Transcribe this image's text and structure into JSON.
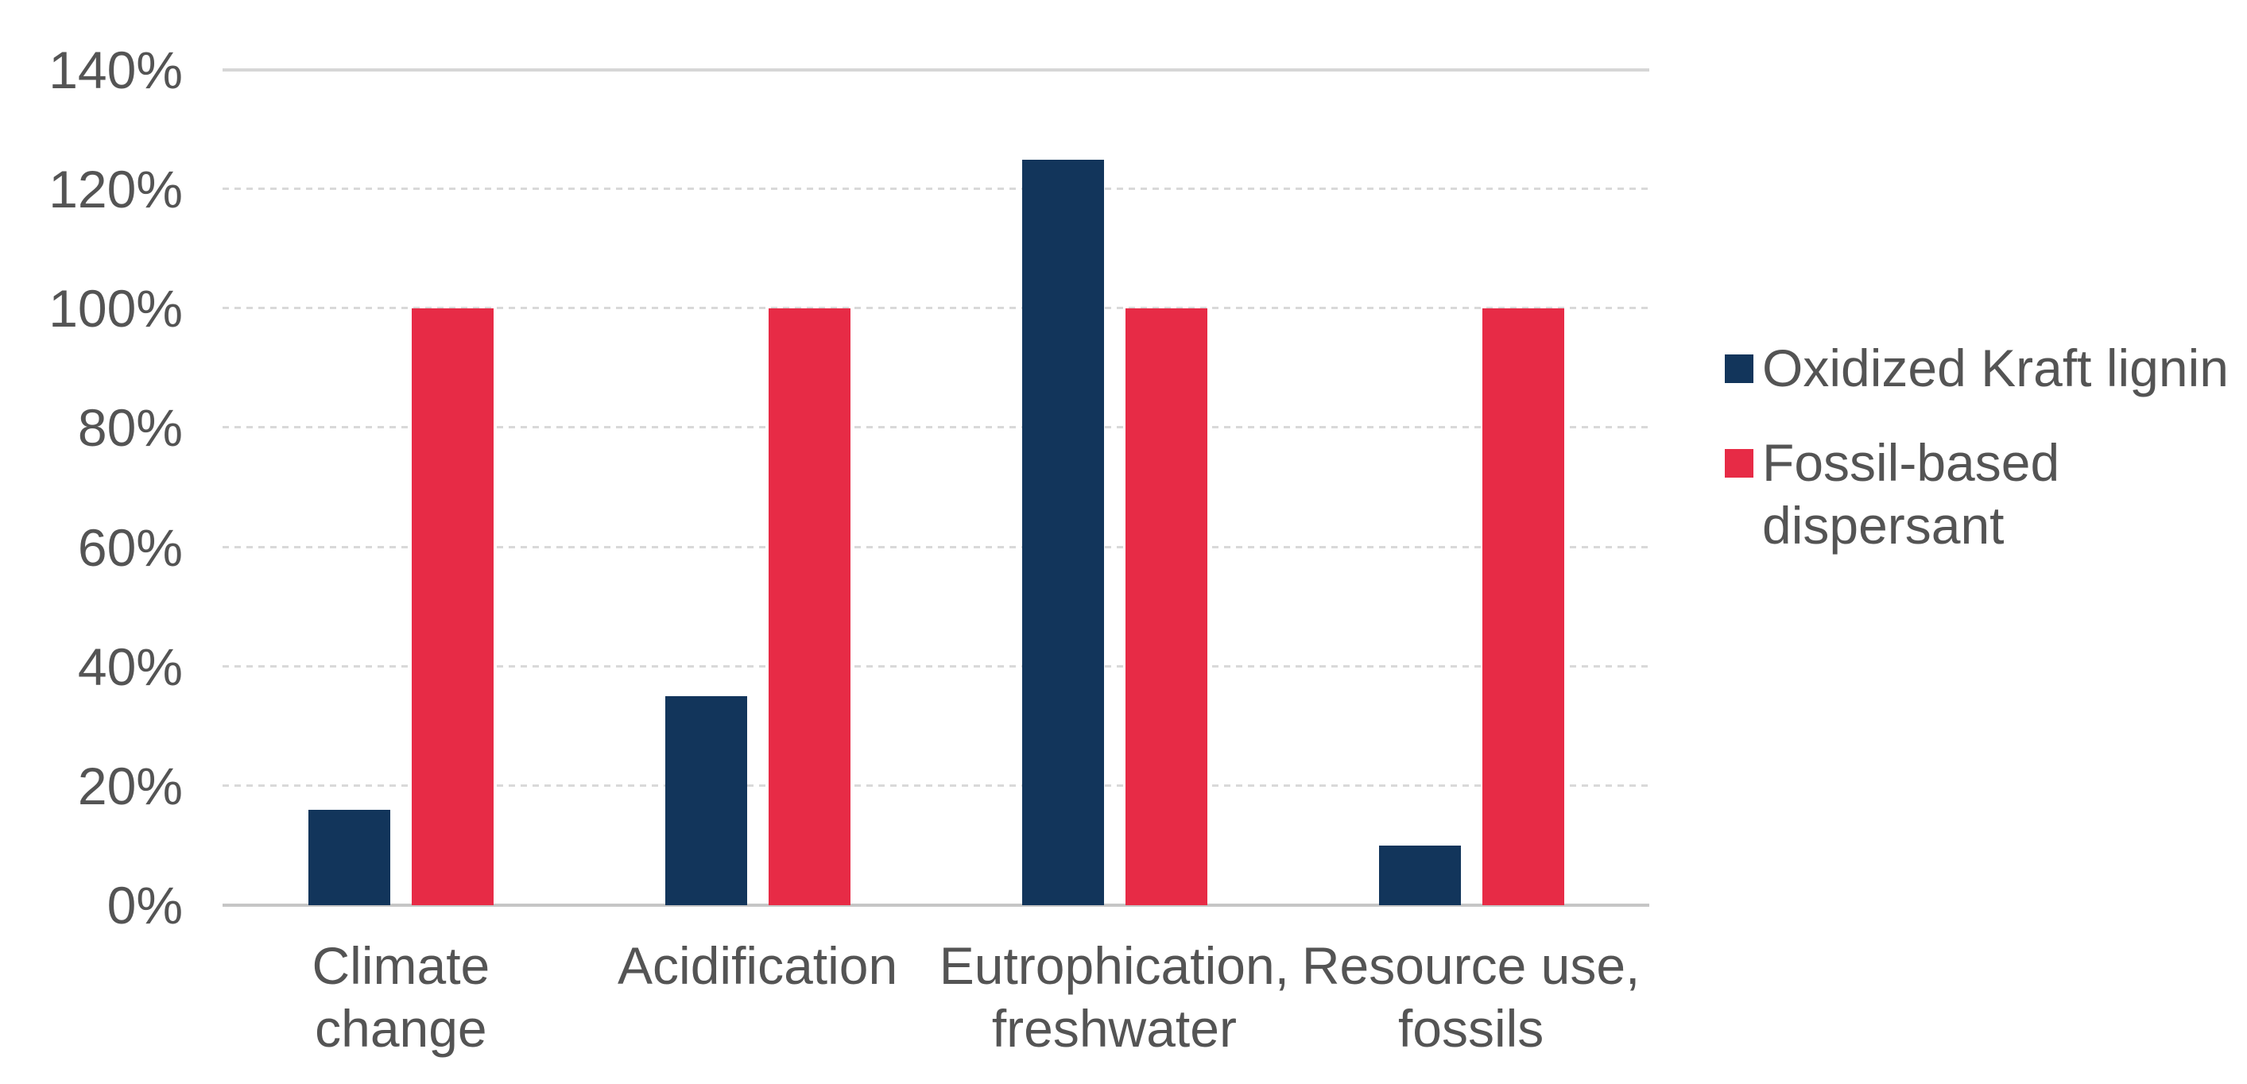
{
  "chart_data": {
    "type": "bar",
    "title": "",
    "xlabel": "",
    "ylabel": "",
    "categories": [
      "Climate\nchange",
      "Acidification",
      "Eutrophication,\nfreshwater",
      "Resource use,\nfossils"
    ],
    "series": [
      {
        "name": "Oxidized Kraft lignin",
        "color": "#12355B",
        "values": [
          16,
          35,
          125,
          10
        ]
      },
      {
        "name": "Fossil-based dispersant",
        "color": "#E72B46",
        "values": [
          100,
          100,
          100,
          100
        ]
      }
    ],
    "ylim": [
      0,
      140
    ],
    "ytick_step": 20,
    "ytick_labels": [
      "0%",
      "20%",
      "40%",
      "60%",
      "80%",
      "100%",
      "120%",
      "140%"
    ],
    "grid": "horizontal-dotted",
    "legend_position": "right"
  },
  "legend": {
    "items": [
      {
        "label": "Oxidized Kraft lignin",
        "swatch_color": "#12355B"
      },
      {
        "label": "Fossil-based\ndispersant",
        "swatch_color": "#E72B46"
      }
    ]
  },
  "colors": {
    "background": "#FFFFFF",
    "axis_text": "#545454",
    "gridline": "#D9D9D9",
    "axis_line": "#C6C6C6",
    "series_1": "#12355B",
    "series_2": "#E72B46"
  }
}
